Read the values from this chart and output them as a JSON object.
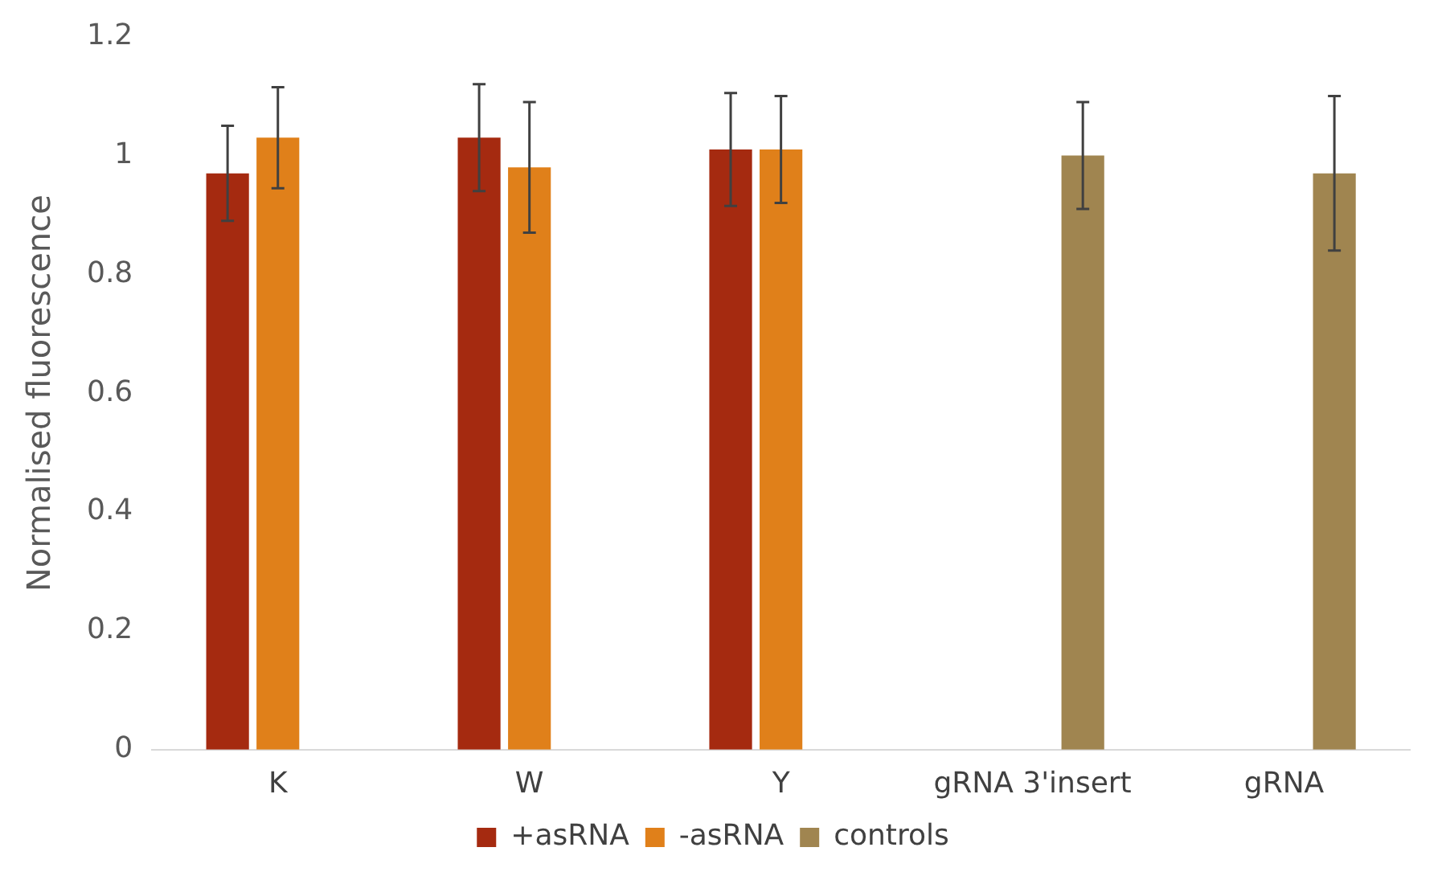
{
  "chart_data": {
    "type": "bar",
    "ylabel": "Normalised fluorescence",
    "categories": [
      "K",
      "W",
      "Y",
      "gRNA 3'insert",
      "gRNA"
    ],
    "series": [
      {
        "name": "+asRNA",
        "color": "#a52a10",
        "values": [
          0.97,
          1.03,
          1.01,
          null,
          null
        ],
        "errors": [
          0.08,
          0.09,
          0.095,
          null,
          null
        ]
      },
      {
        "name": "-asRNA",
        "color": "#e0801a",
        "values": [
          1.03,
          0.98,
          1.01,
          null,
          null
        ],
        "errors": [
          0.085,
          0.11,
          0.09,
          null,
          null
        ]
      },
      {
        "name": "controls",
        "color": "#a08550",
        "values": [
          null,
          null,
          null,
          1.0,
          0.97
        ],
        "errors": [
          null,
          null,
          null,
          0.09,
          0.13
        ]
      }
    ],
    "ylim": [
      0,
      1.2
    ],
    "yticks": [
      0,
      0.2,
      0.4,
      0.6,
      0.8,
      1,
      1.2
    ],
    "grid": false,
    "legend": "bottom"
  }
}
